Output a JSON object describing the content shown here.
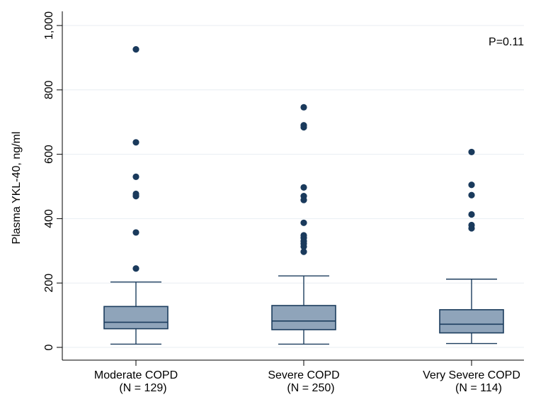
{
  "chart_data": {
    "type": "box",
    "title": "",
    "ylabel": "Plasma YKL-40, ng/ml",
    "xlabel": "",
    "ylim": [
      0,
      1000
    ],
    "yticks": [
      0,
      200,
      400,
      600,
      800,
      1000
    ],
    "ytick_labels": [
      "0",
      "200",
      "400",
      "600",
      "800",
      "1,000"
    ],
    "grid": true,
    "annotation": "P=0.11",
    "colors": {
      "box_fill": "#8fa4ba",
      "box_stroke": "#1c3d5e",
      "outlier": "#1a3a5c",
      "grid": "#e8eef2"
    },
    "groups": [
      {
        "label": "Moderate COPD",
        "n_label": "(N = 129)",
        "min": 10,
        "q1": 58,
        "median": 78,
        "q3": 127,
        "max": 203,
        "outliers": [
          245,
          357,
          470,
          477,
          530,
          637,
          926
        ]
      },
      {
        "label": "Severe COPD",
        "n_label": "(N = 250)",
        "min": 10,
        "q1": 55,
        "median": 82,
        "q3": 130,
        "max": 222,
        "outliers": [
          297,
          313,
          322,
          330,
          340,
          348,
          387,
          458,
          470,
          497,
          684,
          690,
          746
        ]
      },
      {
        "label": "Very Severe COPD",
        "n_label": "(N = 114)",
        "min": 12,
        "q1": 45,
        "median": 72,
        "q3": 117,
        "max": 212,
        "outliers": [
          370,
          380,
          413,
          473,
          505,
          607
        ]
      }
    ]
  }
}
